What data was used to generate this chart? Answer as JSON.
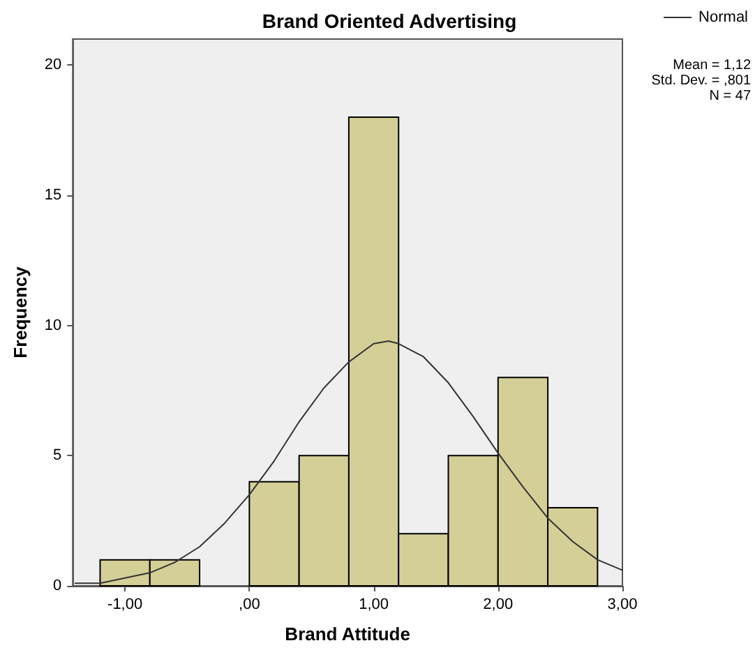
{
  "chart_data": {
    "type": "histogram",
    "title": "Brand Oriented Advertising",
    "xlabel": "Brand Attitude",
    "ylabel": "Frequency",
    "series": [
      {
        "color": "#d3cf96",
        "bins": [
          -1.2,
          -0.8,
          -0.4,
          0,
          0.4,
          0.8,
          1.2,
          1.6,
          2.0,
          2.4,
          2.8
        ],
        "values": [
          1,
          1,
          0,
          4,
          5,
          18,
          2,
          5,
          8,
          3
        ]
      },
      {
        "type": "line",
        "name": "Normal",
        "color": "#333333",
        "x": [
          -1.4,
          -1.2,
          -1.0,
          -0.8,
          -0.6,
          -0.4,
          -0.2,
          0,
          0.2,
          0.4,
          0.6,
          0.8,
          1.0,
          1.12,
          1.2,
          1.4,
          1.6,
          1.8,
          2.0,
          2.2,
          2.4,
          2.6,
          2.8,
          3.0
        ],
        "values": [
          0.1,
          0.1,
          0.3,
          0.5,
          0.9,
          1.5,
          2.4,
          3.5,
          4.8,
          6.3,
          7.6,
          8.6,
          9.3,
          9.4,
          9.3,
          8.8,
          7.8,
          6.5,
          5.1,
          3.8,
          2.6,
          1.7,
          1.0,
          0.6
        ]
      }
    ],
    "xlim": [
      -1.42,
      3.0
    ],
    "xticks": [
      {
        "value": -1,
        "label": "-1,00"
      },
      {
        "value": 0,
        "label": ",00"
      },
      {
        "value": 1,
        "label": "1,00"
      },
      {
        "value": 2,
        "label": "2,00"
      },
      {
        "value": 3,
        "label": "3,00"
      }
    ],
    "ylim": [
      0,
      21
    ],
    "yticks": [
      0,
      5,
      10,
      15,
      20
    ],
    "annotations": [
      "Mean = 1,12",
      "Std. Dev. = ,801",
      "N = 47"
    ],
    "legend": "top right",
    "grid": false,
    "marker": "none",
    "line_style": "solid"
  }
}
